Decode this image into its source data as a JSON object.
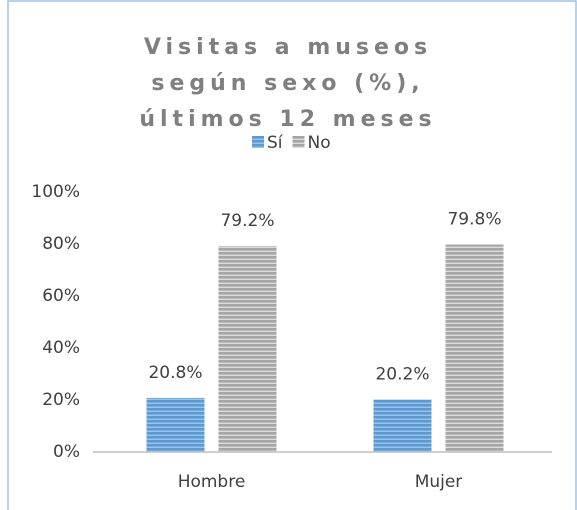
{
  "chart_data": {
    "type": "bar",
    "title": "Visitas a museos según sexo (%), últimos 12 meses",
    "categories": [
      "Hombre",
      "Mujer"
    ],
    "series": [
      {
        "name": "Sí",
        "color": "#5b9bd5",
        "values": [
          20.8,
          20.2
        ],
        "value_labels": [
          "20.8%",
          "20.2%"
        ]
      },
      {
        "name": "No",
        "color": "#a5a5a5",
        "values": [
          79.2,
          79.8
        ],
        "value_labels": [
          "79.2%",
          "79.8%"
        ]
      }
    ],
    "ylim": [
      0,
      100
    ],
    "yticks": [
      {
        "value": 0,
        "label": "0%"
      },
      {
        "value": 20,
        "label": "20%"
      },
      {
        "value": 40,
        "label": "40%"
      },
      {
        "value": 60,
        "label": "60%"
      },
      {
        "value": 80,
        "label": "80%"
      },
      {
        "value": 100,
        "label": "100%"
      }
    ],
    "grid": false,
    "legend": "top"
  }
}
